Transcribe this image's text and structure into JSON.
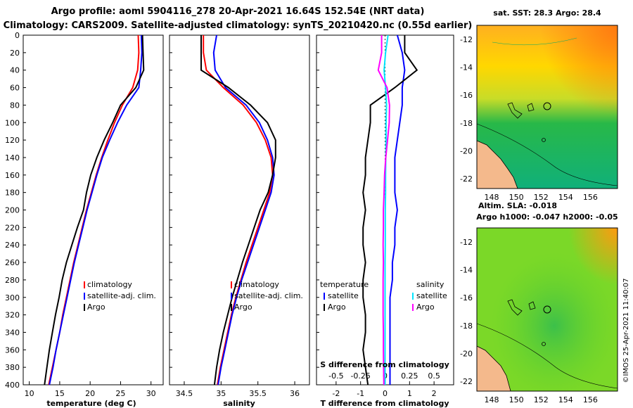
{
  "header": {
    "title_line1": "Argo profile: aoml 5904116_278 20-Apr-2021 16.64S 152.54E (NRT data)",
    "title_line2": "Climatology: CARS2009. Satellite-adjusted climatology: synTS_20210420.nc (0.55d earlier)"
  },
  "colors": {
    "climatology": "#ff0000",
    "satellite": "#0000ff",
    "argo": "#000000",
    "sal_sat": "#00e5ff",
    "sal_argo": "#ff00ff"
  },
  "chart_data": [
    {
      "id": "temperature",
      "type": "line",
      "xlabel": "temperature (deg C)",
      "xlim": [
        9,
        32
      ],
      "ylim": [
        0,
        400
      ],
      "xticks": [
        10,
        15,
        20,
        25,
        30
      ],
      "xtick_labels": [
        "10",
        "15",
        "20",
        "25",
        "30"
      ],
      "yticks": [
        0,
        20,
        40,
        60,
        80,
        100,
        120,
        140,
        160,
        180,
        200,
        220,
        240,
        260,
        280,
        300,
        320,
        340,
        360,
        380,
        400
      ],
      "legend": [
        "climatology",
        "satellite-adj. clim.",
        "Argo"
      ],
      "series": [
        {
          "name": "climatology",
          "color": "#ff0000",
          "points": [
            [
              27.9,
              0
            ],
            [
              28.0,
              20
            ],
            [
              27.8,
              40
            ],
            [
              27.0,
              60
            ],
            [
              25.3,
              80
            ],
            [
              24.0,
              100
            ],
            [
              22.9,
              120
            ],
            [
              21.9,
              140
            ],
            [
              21.0,
              160
            ],
            [
              20.2,
              180
            ],
            [
              19.4,
              200
            ],
            [
              18.7,
              220
            ],
            [
              18.0,
              240
            ],
            [
              17.3,
              260
            ],
            [
              16.7,
              280
            ],
            [
              16.1,
              300
            ],
            [
              15.5,
              320
            ],
            [
              15.0,
              340
            ],
            [
              14.4,
              360
            ],
            [
              13.8,
              380
            ],
            [
              13.2,
              400
            ]
          ]
        },
        {
          "name": "satellite-adj. clim.",
          "color": "#0000ff",
          "points": [
            [
              28.4,
              0
            ],
            [
              28.5,
              20
            ],
            [
              28.3,
              40
            ],
            [
              28.0,
              60
            ],
            [
              26.0,
              80
            ],
            [
              24.5,
              100
            ],
            [
              23.2,
              120
            ],
            [
              22.0,
              140
            ],
            [
              21.1,
              160
            ],
            [
              20.3,
              180
            ],
            [
              19.5,
              200
            ],
            [
              18.8,
              220
            ],
            [
              18.1,
              240
            ],
            [
              17.4,
              260
            ],
            [
              16.8,
              280
            ],
            [
              16.2,
              300
            ],
            [
              15.6,
              320
            ],
            [
              15.0,
              340
            ],
            [
              14.4,
              360
            ],
            [
              13.9,
              380
            ],
            [
              13.3,
              400
            ]
          ]
        },
        {
          "name": "Argo",
          "color": "#000000",
          "points": [
            [
              28.6,
              0
            ],
            [
              28.7,
              20
            ],
            [
              28.8,
              40
            ],
            [
              27.5,
              60
            ],
            [
              25.0,
              80
            ],
            [
              23.7,
              100
            ],
            [
              22.3,
              120
            ],
            [
              21.1,
              140
            ],
            [
              20.1,
              160
            ],
            [
              19.4,
              180
            ],
            [
              18.9,
              200
            ],
            [
              17.9,
              220
            ],
            [
              17.0,
              240
            ],
            [
              16.1,
              260
            ],
            [
              15.4,
              280
            ],
            [
              14.9,
              300
            ],
            [
              14.3,
              320
            ],
            [
              13.8,
              340
            ],
            [
              13.3,
              360
            ],
            [
              12.9,
              380
            ],
            [
              12.5,
              400
            ]
          ]
        }
      ]
    },
    {
      "id": "salinity",
      "type": "line",
      "xlabel": "salinity",
      "xlim": [
        34.3,
        36.2
      ],
      "ylim": [
        0,
        400
      ],
      "xticks": [
        34.5,
        35,
        35.5,
        36
      ],
      "xtick_labels": [
        "34.5",
        "35",
        "35.5",
        "36"
      ],
      "legend": [
        "climatology",
        "satellite-adj. clim.",
        "Argo"
      ],
      "series": [
        {
          "name": "climatology",
          "color": "#ff0000",
          "points": [
            [
              34.76,
              0
            ],
            [
              34.76,
              20
            ],
            [
              34.8,
              40
            ],
            [
              35.03,
              60
            ],
            [
              35.3,
              80
            ],
            [
              35.48,
              100
            ],
            [
              35.6,
              120
            ],
            [
              35.68,
              140
            ],
            [
              35.7,
              160
            ],
            [
              35.66,
              180
            ],
            [
              35.58,
              200
            ],
            [
              35.5,
              220
            ],
            [
              35.42,
              240
            ],
            [
              35.34,
              260
            ],
            [
              35.27,
              280
            ],
            [
              35.2,
              300
            ],
            [
              35.14,
              320
            ],
            [
              35.09,
              340
            ],
            [
              35.04,
              360
            ],
            [
              34.99,
              380
            ],
            [
              34.95,
              400
            ]
          ]
        },
        {
          "name": "satellite-adj. clim.",
          "color": "#0000ff",
          "points": [
            [
              34.94,
              0
            ],
            [
              34.9,
              20
            ],
            [
              34.92,
              40
            ],
            [
              35.06,
              60
            ],
            [
              35.34,
              80
            ],
            [
              35.52,
              100
            ],
            [
              35.63,
              120
            ],
            [
              35.7,
              140
            ],
            [
              35.72,
              160
            ],
            [
              35.68,
              180
            ],
            [
              35.6,
              200
            ],
            [
              35.52,
              220
            ],
            [
              35.44,
              240
            ],
            [
              35.36,
              260
            ],
            [
              35.28,
              280
            ],
            [
              35.21,
              300
            ],
            [
              35.15,
              320
            ],
            [
              35.1,
              340
            ],
            [
              35.05,
              360
            ],
            [
              35.0,
              380
            ],
            [
              34.96,
              400
            ]
          ]
        },
        {
          "name": "Argo",
          "color": "#000000",
          "points": [
            [
              34.73,
              0
            ],
            [
              34.73,
              20
            ],
            [
              34.73,
              40
            ],
            [
              35.1,
              60
            ],
            [
              35.4,
              80
            ],
            [
              35.63,
              100
            ],
            [
              35.74,
              120
            ],
            [
              35.74,
              140
            ],
            [
              35.7,
              160
            ],
            [
              35.64,
              180
            ],
            [
              35.53,
              200
            ],
            [
              35.45,
              220
            ],
            [
              35.37,
              240
            ],
            [
              35.29,
              260
            ],
            [
              35.22,
              280
            ],
            [
              35.15,
              300
            ],
            [
              35.09,
              320
            ],
            [
              35.03,
              340
            ],
            [
              34.98,
              360
            ],
            [
              34.94,
              380
            ],
            [
              34.91,
              400
            ]
          ]
        }
      ]
    },
    {
      "id": "difference",
      "type": "line",
      "xlabel": "T difference from climatology",
      "xlabel2": "S difference from climatology",
      "xlim": [
        -2.8,
        2.8
      ],
      "ylim": [
        0,
        400
      ],
      "xticks": [
        -2,
        -1,
        0,
        1,
        2
      ],
      "xtick_labels": [
        "-2",
        "-1",
        "0",
        "1",
        "2"
      ],
      "xticks2": [
        -0.5,
        -0.25,
        0,
        0.25,
        0.5
      ],
      "xtick_labels2": [
        "-0.5",
        "-0.25",
        "0",
        "0.25",
        "0.5"
      ],
      "legend_temperature_title": "temperature",
      "legend_salinity_title": "salinity",
      "legend_temperature": [
        "satellite",
        "Argo"
      ],
      "legend_salinity": [
        "satellite",
        "Argo"
      ],
      "series": [
        {
          "name": "temperature satellite",
          "color": "#0000ff",
          "points": [
            [
              0.5,
              0
            ],
            [
              0.7,
              20
            ],
            [
              0.8,
              40
            ],
            [
              0.7,
              60
            ],
            [
              0.7,
              80
            ],
            [
              0.6,
              100
            ],
            [
              0.5,
              120
            ],
            [
              0.4,
              140
            ],
            [
              0.4,
              160
            ],
            [
              0.4,
              180
            ],
            [
              0.5,
              200
            ],
            [
              0.4,
              220
            ],
            [
              0.4,
              240
            ],
            [
              0.3,
              260
            ],
            [
              0.3,
              280
            ],
            [
              0.2,
              300
            ],
            [
              0.2,
              320
            ],
            [
              0.2,
              340
            ],
            [
              0.2,
              360
            ],
            [
              0.2,
              380
            ],
            [
              0.2,
              400
            ]
          ]
        },
        {
          "name": "temperature Argo",
          "color": "#000000",
          "points": [
            [
              0.8,
              0
            ],
            [
              0.8,
              20
            ],
            [
              1.3,
              40
            ],
            [
              0.4,
              60
            ],
            [
              -0.6,
              80
            ],
            [
              -0.6,
              100
            ],
            [
              -0.7,
              120
            ],
            [
              -0.8,
              140
            ],
            [
              -0.8,
              160
            ],
            [
              -0.9,
              180
            ],
            [
              -0.8,
              200
            ],
            [
              -0.9,
              220
            ],
            [
              -0.9,
              240
            ],
            [
              -0.8,
              260
            ],
            [
              -0.9,
              280
            ],
            [
              -0.9,
              300
            ],
            [
              -0.8,
              320
            ],
            [
              -0.8,
              340
            ],
            [
              -0.9,
              360
            ],
            [
              -0.8,
              380
            ],
            [
              -0.7,
              400
            ]
          ]
        },
        {
          "name": "salinity satellite",
          "color": "#00e5ff",
          "points": [
            [
              0.12,
              0
            ],
            [
              0.02,
              20
            ],
            [
              -0.04,
              40
            ],
            [
              0.02,
              60
            ],
            [
              0.06,
              80
            ],
            [
              0.04,
              100
            ],
            [
              0.04,
              120
            ],
            [
              0.03,
              140
            ],
            [
              0.02,
              160
            ],
            [
              0.02,
              180
            ],
            [
              0.01,
              200
            ],
            [
              0.01,
              220
            ],
            [
              0.01,
              240
            ],
            [
              0.0,
              260
            ],
            [
              0.0,
              280
            ],
            [
              0.0,
              300
            ],
            [
              0.0,
              320
            ],
            [
              0.0,
              340
            ],
            [
              0.0,
              360
            ],
            [
              0.0,
              380
            ],
            [
              0.0,
              400
            ]
          ]
        },
        {
          "name": "salinity Argo",
          "color": "#ff00ff",
          "points": [
            [
              -0.14,
              0
            ],
            [
              -0.14,
              20
            ],
            [
              -0.28,
              40
            ],
            [
              0.08,
              60
            ],
            [
              0.18,
              80
            ],
            [
              0.17,
              100
            ],
            [
              0.1,
              120
            ],
            [
              0.03,
              140
            ],
            [
              -0.02,
              160
            ],
            [
              -0.04,
              180
            ],
            [
              -0.07,
              200
            ],
            [
              -0.07,
              220
            ],
            [
              -0.08,
              240
            ],
            [
              -0.07,
              260
            ],
            [
              -0.08,
              280
            ],
            [
              -0.08,
              300
            ],
            [
              -0.08,
              320
            ],
            [
              -0.07,
              340
            ],
            [
              -0.07,
              360
            ],
            [
              -0.06,
              380
            ],
            [
              -0.05,
              400
            ]
          ]
        }
      ]
    }
  ],
  "maps": [
    {
      "id": "sst-map",
      "title": "sat. SST: 28.3 Argo: 28.4",
      "xticks": [
        "148",
        "150",
        "152",
        "154",
        "156"
      ],
      "yticks": [
        "-12",
        "-14",
        "-16",
        "-18",
        "-20",
        "-22"
      ]
    },
    {
      "id": "sla-map",
      "title": "Altim. SLA: -0.018",
      "subtitle": "Argo h1000: -0.047 h2000: -0.05",
      "xticks": [
        "148",
        "150",
        "152",
        "154",
        "156"
      ],
      "yticks": [
        "-12",
        "-14",
        "-16",
        "-18",
        "-20",
        "-22"
      ]
    }
  ],
  "credit": "©IMOS 25-Apr-2021 11:40:07"
}
